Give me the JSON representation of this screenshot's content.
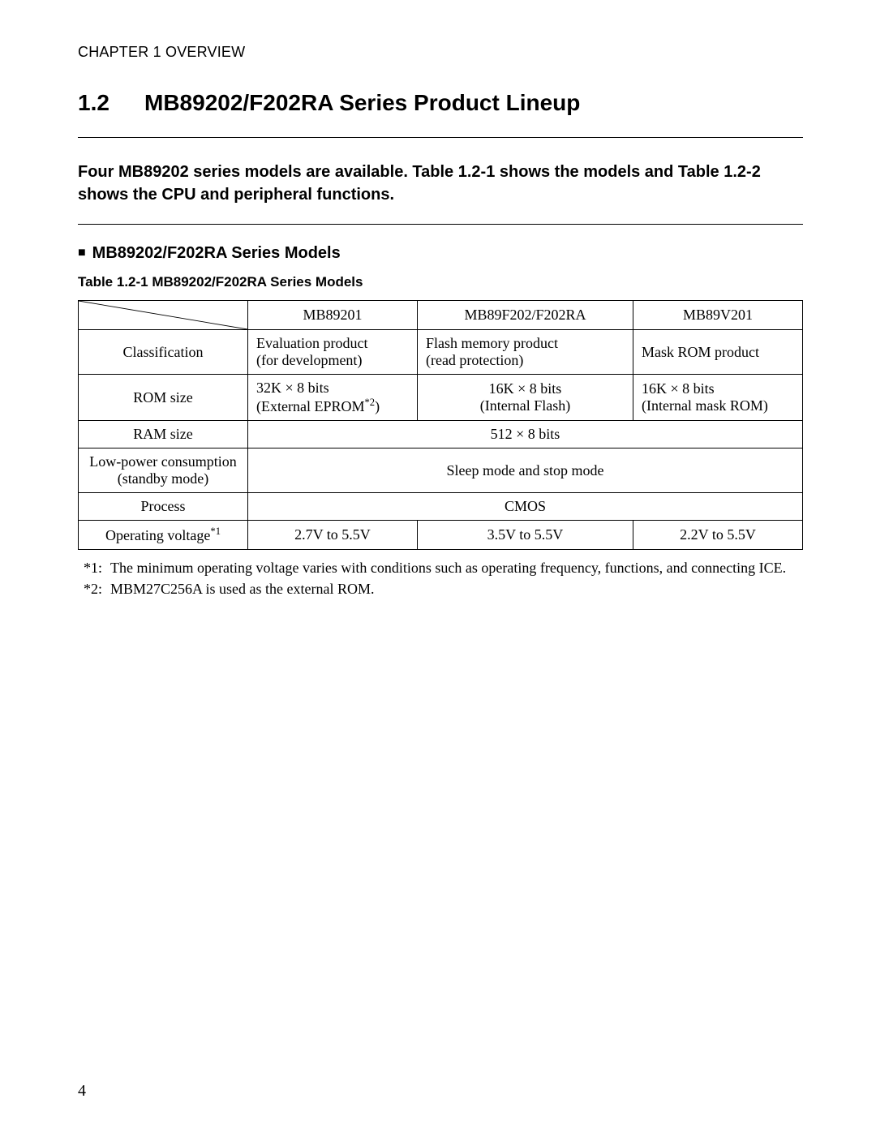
{
  "header": {
    "chapter": "CHAPTER 1  OVERVIEW"
  },
  "section": {
    "number": "1.2",
    "title": "MB89202/F202RA Series Product Lineup",
    "summary": "Four MB89202 series models are available. Table 1.2-1 shows the models and Table 1.2-2 shows the CPU and peripheral functions."
  },
  "subheading": {
    "marker": "■",
    "text": "MB89202/F202RA Series Models"
  },
  "table": {
    "caption": "Table 1.2-1  MB89202/F202RA Series Models",
    "col_widths_pct": [
      22,
      22,
      28,
      22
    ],
    "header_align": "center",
    "font_family": "Times New Roman",
    "font_size_pt": 14,
    "border_color": "#000000",
    "columns": [
      "MB89201",
      "MB89F202/F202RA",
      "MB89V201"
    ],
    "rows": [
      {
        "label": "Classification",
        "cells": [
          {
            "lines": [
              "Evaluation product",
              "(for development)"
            ],
            "align": "left"
          },
          {
            "lines": [
              "Flash memory product",
              "(read protection)"
            ],
            "align": "left"
          },
          {
            "lines": [
              "Mask ROM product"
            ],
            "align": "left"
          }
        ]
      },
      {
        "label": "ROM size",
        "cells": [
          {
            "lines": [
              "32K × 8 bits",
              "(External EPROM*2)"
            ],
            "align": "left",
            "sup_on_second": true
          },
          {
            "lines": [
              "16K × 8 bits",
              "(Internal Flash)"
            ],
            "align": "center"
          },
          {
            "lines": [
              "16K × 8 bits",
              "(Internal mask ROM)"
            ],
            "align": "left"
          }
        ]
      },
      {
        "label": "RAM size",
        "merged": {
          "text": "512 × 8 bits",
          "align": "center"
        }
      },
      {
        "label_lines": [
          "Low-power consumption",
          "(standby mode)"
        ],
        "merged": {
          "text": "Sleep mode and stop mode",
          "align": "center"
        }
      },
      {
        "label": "Process",
        "merged": {
          "text": "CMOS",
          "align": "center"
        }
      },
      {
        "label": "Operating voltage*1",
        "label_has_sup": true,
        "cells": [
          {
            "lines": [
              "2.7V to 5.5V"
            ],
            "align": "center"
          },
          {
            "lines": [
              "3.5V to 5.5V"
            ],
            "align": "center"
          },
          {
            "lines": [
              "2.2V to 5.5V"
            ],
            "align": "center"
          }
        ]
      }
    ]
  },
  "footnotes": [
    {
      "marker": "*1:",
      "text": "The minimum operating voltage varies with conditions such as operating frequency, functions, and connecting ICE."
    },
    {
      "marker": "*2:",
      "text": "MBM27C256A is used as the external ROM."
    }
  ],
  "page_number": "4",
  "style": {
    "page_bg": "#ffffff",
    "text_color": "#000000",
    "sans_font": "Arial",
    "serif_font": "Times New Roman",
    "section_title_size_pt": 21,
    "summary_size_pt": 15,
    "subheading_size_pt": 15,
    "caption_size_pt": 13,
    "body_size_pt": 14
  }
}
